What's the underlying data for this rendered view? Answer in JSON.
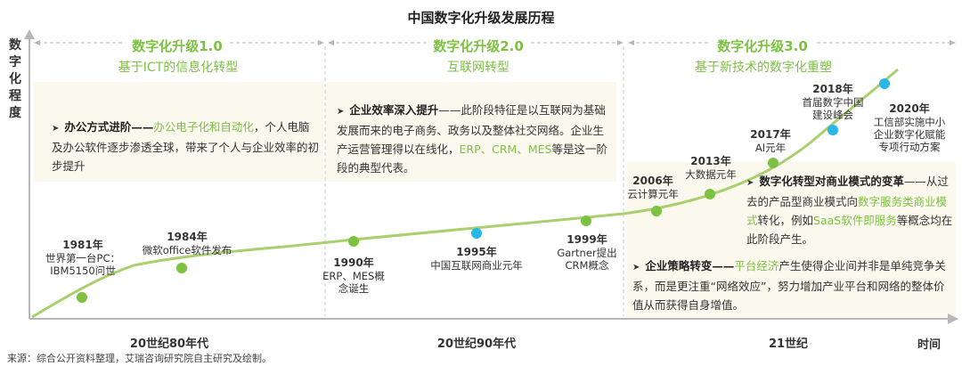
{
  "title": "中国数字化升级发展历程",
  "y_axis_label": "数字化程度",
  "x_axis_label": "时间",
  "stages": [
    {
      "name": "数字化升级1.0",
      "subtitle": "基于ICT的信息化转型"
    },
    {
      "name": "数字化升级2.0",
      "subtitle": "互联网转型"
    },
    {
      "name": "数字化升级3.0",
      "subtitle": "基于新技术的数字化重塑"
    }
  ],
  "boxes": {
    "stage1": {
      "head": "办公方式进阶",
      "dash": "——",
      "highlight": "办公电子化和自动化",
      "text": "，个人电脑及办公软件逐步渗透全球，带来了个人与企业效率的初步提升"
    },
    "stage2": {
      "head": "企业效率深入提升",
      "text1": "——此阶段特征是以互联网为基础发展而来的电子商务、政务以及整体社交网络。企业生产运营管理得以在线化，",
      "highlight": "ERP、CRM、MES",
      "text2": "等是这一阶段的典型代表。"
    },
    "stage3a": {
      "head": "数字化转型对商业模式的变革",
      "text1": "——从过去的产品型商业模式向",
      "highlight1": "数字服务类商业模式",
      "text2": "转化，例如",
      "highlight2": "SaaS软件即服务",
      "text3": "等概念均在此阶段产生。"
    },
    "stage3b": {
      "head": "企业策略转变",
      "dash": "——",
      "highlight": "平台经济",
      "text": "产生使得企业间并非是单纯竞争关系，而是更注重“网络效应”，努力增加产业平台和网络的整体价值从而获得自身增值。"
    }
  },
  "events": [
    {
      "year": "1981年",
      "desc": "世界第一台PC：\nIBM5150问世"
    },
    {
      "year": "1984年",
      "desc": "微软office软件发布"
    },
    {
      "year": "1990年",
      "desc": "ERP、MES概\n念诞生"
    },
    {
      "year": "1995年",
      "desc": "中国互联网商业元年"
    },
    {
      "year": "1999年",
      "desc": "Gartner提出\nCRM概念"
    },
    {
      "year": "2006年",
      "desc": "云计算元年"
    },
    {
      "year": "2013年",
      "desc": "大数据元年"
    },
    {
      "year": "2017年",
      "desc": "AI元年"
    },
    {
      "year": "2018年",
      "desc": "首届数字中国\n建设峰会"
    },
    {
      "year": "2020年",
      "desc": "工信部实施中小\n企业数字化赋能\n专项行动方案"
    }
  ],
  "eras": [
    "20世纪80年代",
    "20世纪90年代",
    "21世纪"
  ],
  "source": "来源：综合公开资料整理，艾瑞咨询研究院自主研究及绘制。",
  "colors": {
    "green": "#7dc142",
    "light_green": "#a9cf6e",
    "blue": "#29b6e8",
    "axis": "#b7b7b7",
    "panel": "#fbf8ee"
  }
}
